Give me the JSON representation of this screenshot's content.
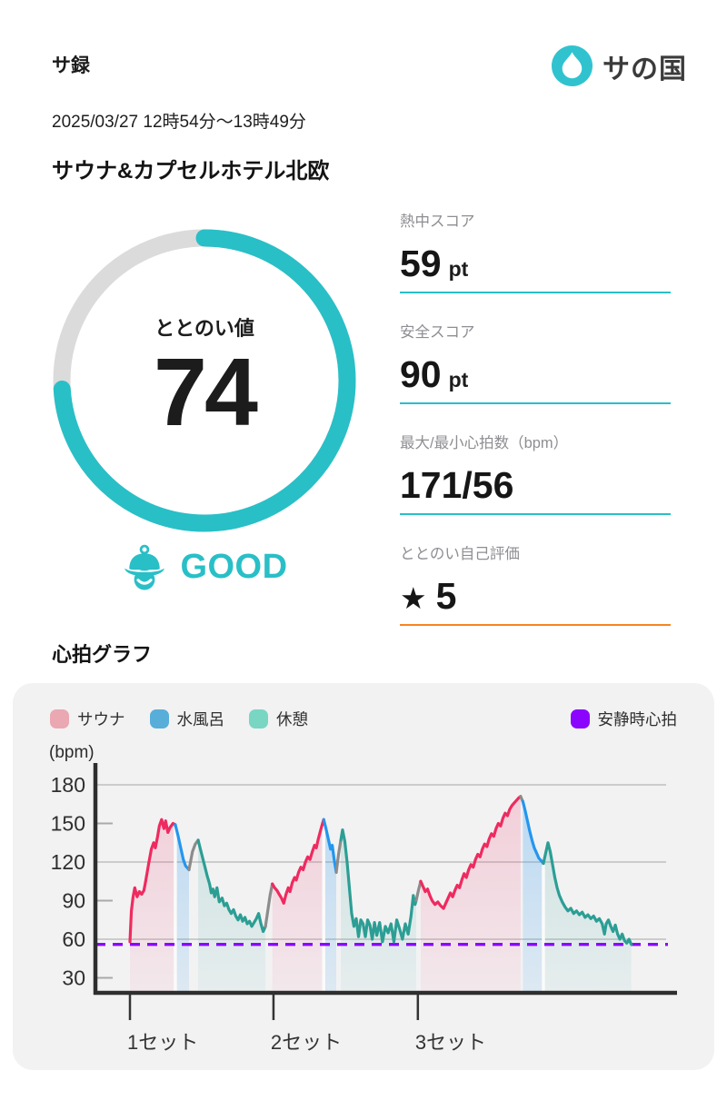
{
  "page": {
    "accent": "#29BFC7",
    "card_bg": "#F2F2F3"
  },
  "header": {
    "app_title": "サ録",
    "brand_name": "サの国",
    "brand_icon": "water-drop-icon",
    "brand_icon_color": "#30C3CF"
  },
  "session": {
    "datetime": "2025/03/27 12時54分〜13時49分",
    "venue": "サウナ&カプセルホテル北欧"
  },
  "gauge": {
    "label": "ととのい値",
    "value": 74,
    "max": 100,
    "rating": "GOOD",
    "rating_icon": "sauna-hat-face-icon",
    "arc_color": "#29BFC7",
    "track_color": "#DBDBDB"
  },
  "stats": [
    {
      "label": "熱中スコア",
      "prefix": "",
      "value": "59",
      "suffix": "pt",
      "underline_color": "#29BFC7"
    },
    {
      "label": "安全スコア",
      "prefix": "",
      "value": "90",
      "suffix": "pt",
      "underline_color": "#29BFC7"
    },
    {
      "label": "最大/最小心拍数（bpm）",
      "prefix": "",
      "value": "171/56",
      "suffix": "",
      "underline_color": "#29BFC7"
    },
    {
      "label": "ととのい自己評価",
      "prefix": "★",
      "value": "5",
      "suffix": "",
      "underline_color": "#F6861F"
    }
  ],
  "chart_section": {
    "title": "心拍グラフ"
  },
  "chart_data": {
    "type": "line",
    "title": "心拍グラフ",
    "unit_label": "(bpm)",
    "ylabel": "bpm",
    "ylim": [
      20,
      190
    ],
    "yticks": [
      30,
      60,
      90,
      120,
      150,
      180
    ],
    "gridlines_full": [
      60,
      120,
      180
    ],
    "gridlines_stub": [
      30,
      90,
      150
    ],
    "grid": true,
    "legend_position": "top",
    "xticks": [
      {
        "label": "1セット",
        "pos": 6.05
      },
      {
        "label": "2セット",
        "pos": 31.2
      },
      {
        "label": "3セット",
        "pos": 56.5
      }
    ],
    "resting_hr": {
      "label": "安静時心拍",
      "value": 56,
      "color": "#8B05FE"
    },
    "legend": [
      {
        "label": "サウナ",
        "color": "#EAA8B2",
        "phase": "sauna"
      },
      {
        "label": "水風呂",
        "color": "#57AED9",
        "phase": "coldbath"
      },
      {
        "label": "休憩",
        "color": "#79D6C2",
        "phase": "rest"
      }
    ],
    "phases": {
      "sauna": {
        "line": "#EF2A5F",
        "fill_top": "rgba(239,42,95,0.20)",
        "fill_bottom": "rgba(239,42,95,0.05)"
      },
      "coldbath": {
        "line": "#2496EE",
        "fill_top": "rgba(36,150,238,0.30)",
        "fill_bottom": "rgba(36,150,238,0.10)"
      },
      "rest": {
        "line": "#2C9E94",
        "fill_top": "rgba(44,158,148,0.22)",
        "fill_bottom": "rgba(44,158,148,0.06)"
      },
      "transition": {
        "line": "#8C8C8C"
      }
    },
    "segments": [
      {
        "phase": "sauna",
        "points": [
          [
            6.05,
            58
          ],
          [
            6.3,
            82
          ],
          [
            6.6,
            93
          ],
          [
            6.9,
            100
          ],
          [
            7.3,
            93
          ],
          [
            7.7,
            97
          ],
          [
            8.1,
            95
          ],
          [
            8.5,
            98
          ],
          [
            8.8,
            105
          ],
          [
            9.3,
            118
          ],
          [
            9.8,
            130
          ],
          [
            10.2,
            135
          ],
          [
            10.5,
            131
          ],
          [
            10.9,
            140
          ],
          [
            11.2,
            148
          ],
          [
            11.6,
            153
          ],
          [
            12.0,
            146
          ],
          [
            12.3,
            152
          ],
          [
            12.7,
            143
          ],
          [
            13.1,
            147
          ],
          [
            13.6,
            150
          ],
          [
            14.0,
            149
          ]
        ]
      },
      {
        "phase": "coldbath",
        "points": [
          [
            14.0,
            149
          ],
          [
            14.5,
            140
          ],
          [
            15.0,
            130
          ],
          [
            15.4,
            122
          ],
          [
            15.8,
            117
          ],
          [
            16.4,
            114
          ]
        ]
      },
      {
        "phase": "transition",
        "points": [
          [
            16.4,
            114
          ],
          [
            17.0,
            128
          ],
          [
            17.5,
            134
          ],
          [
            18.0,
            137
          ]
        ]
      },
      {
        "phase": "rest",
        "points": [
          [
            18.0,
            137
          ],
          [
            18.4,
            130
          ],
          [
            18.8,
            123
          ],
          [
            19.2,
            116
          ],
          [
            19.6,
            109
          ],
          [
            20.0,
            103
          ],
          [
            20.3,
            96
          ],
          [
            20.6,
            99
          ],
          [
            20.9,
            93
          ],
          [
            21.3,
            100
          ],
          [
            21.7,
            89
          ],
          [
            22.2,
            92
          ],
          [
            22.6,
            86
          ],
          [
            23.0,
            88
          ],
          [
            23.4,
            83
          ],
          [
            23.8,
            80
          ],
          [
            24.2,
            83
          ],
          [
            24.6,
            78
          ],
          [
            25.0,
            75
          ],
          [
            25.4,
            79
          ],
          [
            25.8,
            74
          ],
          [
            26.2,
            77
          ],
          [
            26.6,
            72
          ],
          [
            27.0,
            74
          ],
          [
            27.4,
            70
          ],
          [
            27.8,
            73
          ],
          [
            28.2,
            76
          ],
          [
            28.6,
            80
          ],
          [
            29.0,
            72
          ],
          [
            29.4,
            66
          ],
          [
            29.8,
            70
          ]
        ]
      },
      {
        "phase": "transition",
        "points": [
          [
            29.8,
            70
          ],
          [
            30.2,
            82
          ],
          [
            30.6,
            94
          ],
          [
            31.0,
            103
          ]
        ]
      },
      {
        "phase": "sauna",
        "points": [
          [
            31.0,
            103
          ],
          [
            31.4,
            100
          ],
          [
            31.8,
            98
          ],
          [
            32.2,
            95
          ],
          [
            32.6,
            92
          ],
          [
            33.0,
            88
          ],
          [
            33.4,
            95
          ],
          [
            33.8,
            100
          ],
          [
            34.1,
            97
          ],
          [
            34.5,
            104
          ],
          [
            34.9,
            108
          ],
          [
            35.2,
            106
          ],
          [
            35.6,
            112
          ],
          [
            36.0,
            116
          ],
          [
            36.4,
            114
          ],
          [
            36.8,
            120
          ],
          [
            37.2,
            124
          ],
          [
            37.6,
            122
          ],
          [
            38.0,
            128
          ],
          [
            38.4,
            133
          ],
          [
            38.7,
            131
          ],
          [
            39.0,
            137
          ],
          [
            39.3,
            142
          ],
          [
            39.6,
            147
          ],
          [
            40.0,
            153
          ]
        ]
      },
      {
        "phase": "coldbath",
        "points": [
          [
            40.0,
            153
          ],
          [
            40.4,
            146
          ],
          [
            40.8,
            138
          ],
          [
            41.2,
            130
          ],
          [
            41.5,
            133
          ],
          [
            41.8,
            123
          ],
          [
            42.2,
            112
          ]
        ]
      },
      {
        "phase": "transition",
        "points": [
          [
            42.2,
            112
          ],
          [
            42.6,
            126
          ],
          [
            43.0,
            137
          ]
        ]
      },
      {
        "phase": "rest",
        "points": [
          [
            43.0,
            137
          ],
          [
            43.3,
            145
          ],
          [
            43.7,
            136
          ],
          [
            44.1,
            120
          ],
          [
            44.5,
            100
          ],
          [
            44.9,
            80
          ],
          [
            45.3,
            70
          ],
          [
            45.7,
            76
          ],
          [
            46.1,
            62
          ],
          [
            46.5,
            75
          ],
          [
            46.9,
            72
          ],
          [
            47.3,
            62
          ],
          [
            47.7,
            75
          ],
          [
            48.1,
            71
          ],
          [
            48.5,
            60
          ],
          [
            48.9,
            73
          ],
          [
            49.3,
            63
          ],
          [
            49.8,
            73
          ],
          [
            50.3,
            58
          ],
          [
            50.8,
            70
          ],
          [
            51.3,
            65
          ],
          [
            51.8,
            72
          ],
          [
            52.3,
            58
          ],
          [
            52.8,
            75
          ],
          [
            53.3,
            68
          ],
          [
            53.8,
            60
          ],
          [
            54.3,
            72
          ],
          [
            54.8,
            64
          ],
          [
            55.3,
            78
          ],
          [
            55.7,
            94
          ],
          [
            56.0,
            87
          ],
          [
            56.2,
            90
          ]
        ]
      },
      {
        "phase": "transition",
        "points": [
          [
            56.2,
            90
          ],
          [
            56.6,
            98
          ],
          [
            57.0,
            105
          ]
        ]
      },
      {
        "phase": "sauna",
        "points": [
          [
            57.0,
            105
          ],
          [
            57.4,
            101
          ],
          [
            57.8,
            97
          ],
          [
            58.2,
            99
          ],
          [
            58.6,
            94
          ],
          [
            59.0,
            90
          ],
          [
            59.5,
            87
          ],
          [
            60.0,
            89
          ],
          [
            60.5,
            86
          ],
          [
            61.0,
            84
          ],
          [
            61.4,
            88
          ],
          [
            61.8,
            92
          ],
          [
            62.2,
            96
          ],
          [
            62.6,
            93
          ],
          [
            63.0,
            98
          ],
          [
            63.4,
            102
          ],
          [
            63.8,
            100
          ],
          [
            64.2,
            106
          ],
          [
            64.6,
            111
          ],
          [
            65.0,
            108
          ],
          [
            65.4,
            114
          ],
          [
            65.8,
            118
          ],
          [
            66.2,
            116
          ],
          [
            66.6,
            122
          ],
          [
            67.0,
            126
          ],
          [
            67.4,
            124
          ],
          [
            67.8,
            130
          ],
          [
            68.2,
            134
          ],
          [
            68.6,
            132
          ],
          [
            69.0,
            138
          ],
          [
            69.4,
            142
          ],
          [
            69.8,
            140
          ],
          [
            70.2,
            146
          ],
          [
            70.6,
            150
          ],
          [
            71.0,
            148
          ],
          [
            71.4,
            154
          ],
          [
            71.8,
            158
          ],
          [
            72.2,
            156
          ],
          [
            72.6,
            161
          ],
          [
            73.0,
            164
          ],
          [
            73.4,
            166
          ],
          [
            73.8,
            168
          ],
          [
            74.2,
            170
          ],
          [
            74.5,
            171
          ]
        ]
      },
      {
        "phase": "transition",
        "points": [
          [
            74.5,
            171
          ],
          [
            74.9,
            167
          ]
        ]
      },
      {
        "phase": "coldbath",
        "points": [
          [
            74.9,
            167
          ],
          [
            75.3,
            160
          ],
          [
            75.7,
            152
          ],
          [
            76.1,
            144
          ],
          [
            76.5,
            137
          ],
          [
            76.9,
            131
          ],
          [
            77.3,
            127
          ],
          [
            77.7,
            123
          ],
          [
            78.1,
            121
          ],
          [
            78.5,
            119
          ]
        ]
      },
      {
        "phase": "rest",
        "points": [
          [
            78.5,
            119
          ],
          [
            78.9,
            127
          ],
          [
            79.3,
            135
          ],
          [
            79.7,
            128
          ],
          [
            80.1,
            118
          ],
          [
            80.5,
            108
          ],
          [
            80.9,
            100
          ],
          [
            81.3,
            94
          ],
          [
            81.8,
            89
          ],
          [
            82.3,
            85
          ],
          [
            82.8,
            82
          ],
          [
            83.3,
            84
          ],
          [
            83.8,
            80
          ],
          [
            84.3,
            82
          ],
          [
            84.8,
            79
          ],
          [
            85.3,
            81
          ],
          [
            85.8,
            77
          ],
          [
            86.3,
            79
          ],
          [
            86.8,
            76
          ],
          [
            87.3,
            78
          ],
          [
            87.8,
            74
          ],
          [
            88.3,
            76
          ],
          [
            88.8,
            72
          ],
          [
            89.2,
            64
          ],
          [
            89.5,
            72
          ],
          [
            89.9,
            75
          ],
          [
            90.3,
            70
          ],
          [
            90.7,
            66
          ],
          [
            91.1,
            71
          ],
          [
            91.5,
            64
          ],
          [
            91.9,
            60
          ],
          [
            92.3,
            64
          ],
          [
            92.7,
            59
          ],
          [
            93.1,
            57
          ],
          [
            93.5,
            60
          ],
          [
            93.9,
            56
          ]
        ]
      }
    ]
  }
}
